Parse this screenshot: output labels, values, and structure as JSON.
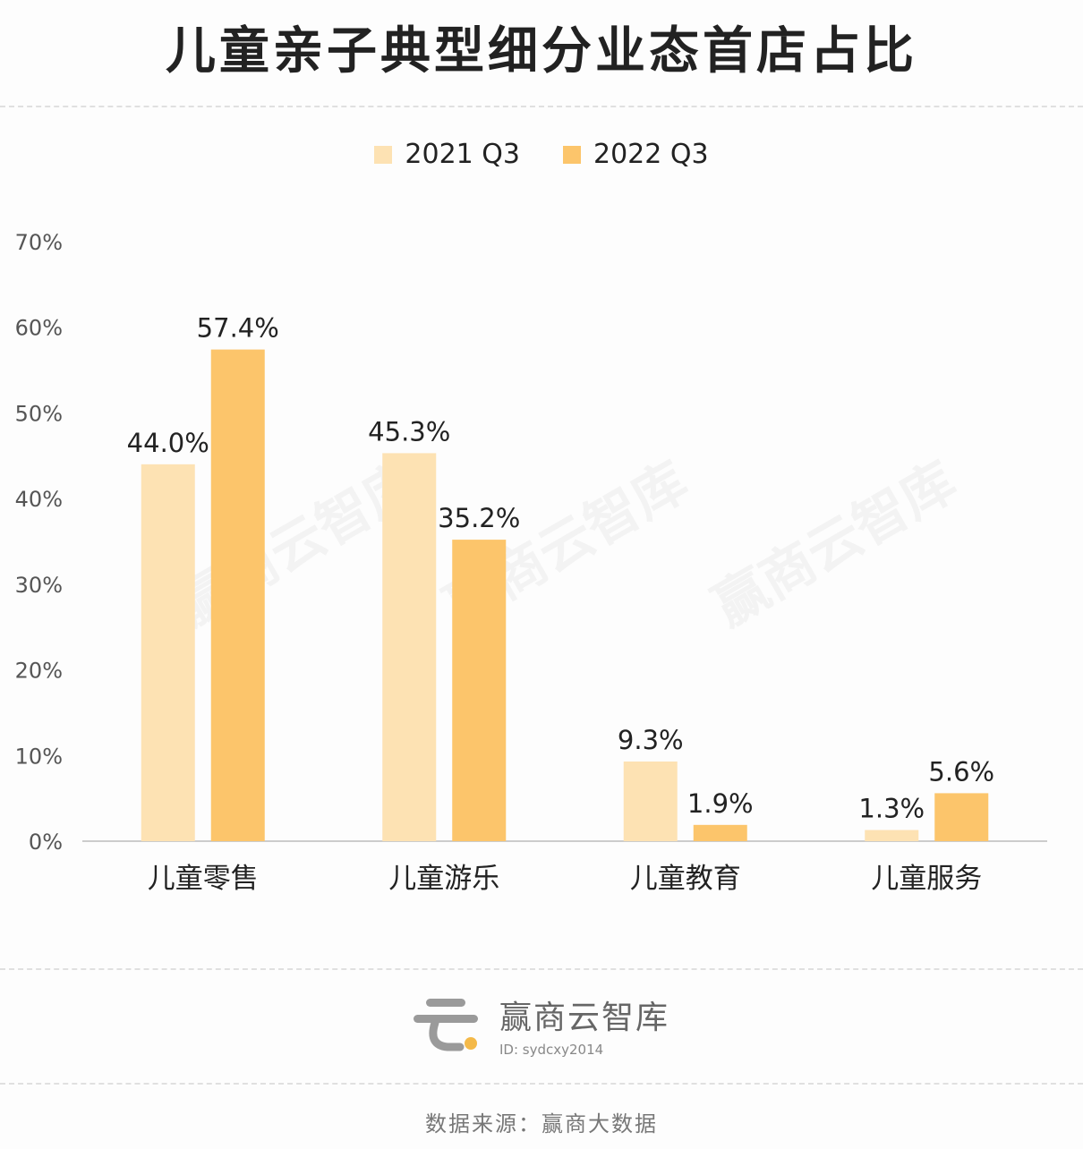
{
  "title": "儿童亲子典型细分业态首店占比",
  "watermark": "赢商云智库",
  "brand": {
    "name": "赢商云智库",
    "id": "ID: sydcxy2014"
  },
  "source": "数据来源：赢商大数据",
  "colors": {
    "series_2021": "#fde2b3",
    "series_2022": "#fcc56b",
    "axis": "#cccccc"
  },
  "chart_data": {
    "type": "bar",
    "title": "儿童亲子典型细分业态首店占比",
    "categories": [
      "儿童零售",
      "儿童游乐",
      "儿童教育",
      "儿童服务"
    ],
    "series": [
      {
        "name": "2021 Q3",
        "values": [
          44.0,
          45.3,
          9.3,
          1.3
        ],
        "labels": [
          "44.0%",
          "45.3%",
          "9.3%",
          "1.3%"
        ]
      },
      {
        "name": "2022 Q3",
        "values": [
          57.4,
          35.2,
          1.9,
          5.6
        ],
        "labels": [
          "57.4%",
          "35.2%",
          "1.9%",
          "5.6%"
        ]
      }
    ],
    "yticks": [
      "0%",
      "10%",
      "20%",
      "30%",
      "40%",
      "50%",
      "60%",
      "70%"
    ],
    "ylim": [
      0,
      70
    ],
    "grid": false,
    "legend_position": "top-center"
  }
}
